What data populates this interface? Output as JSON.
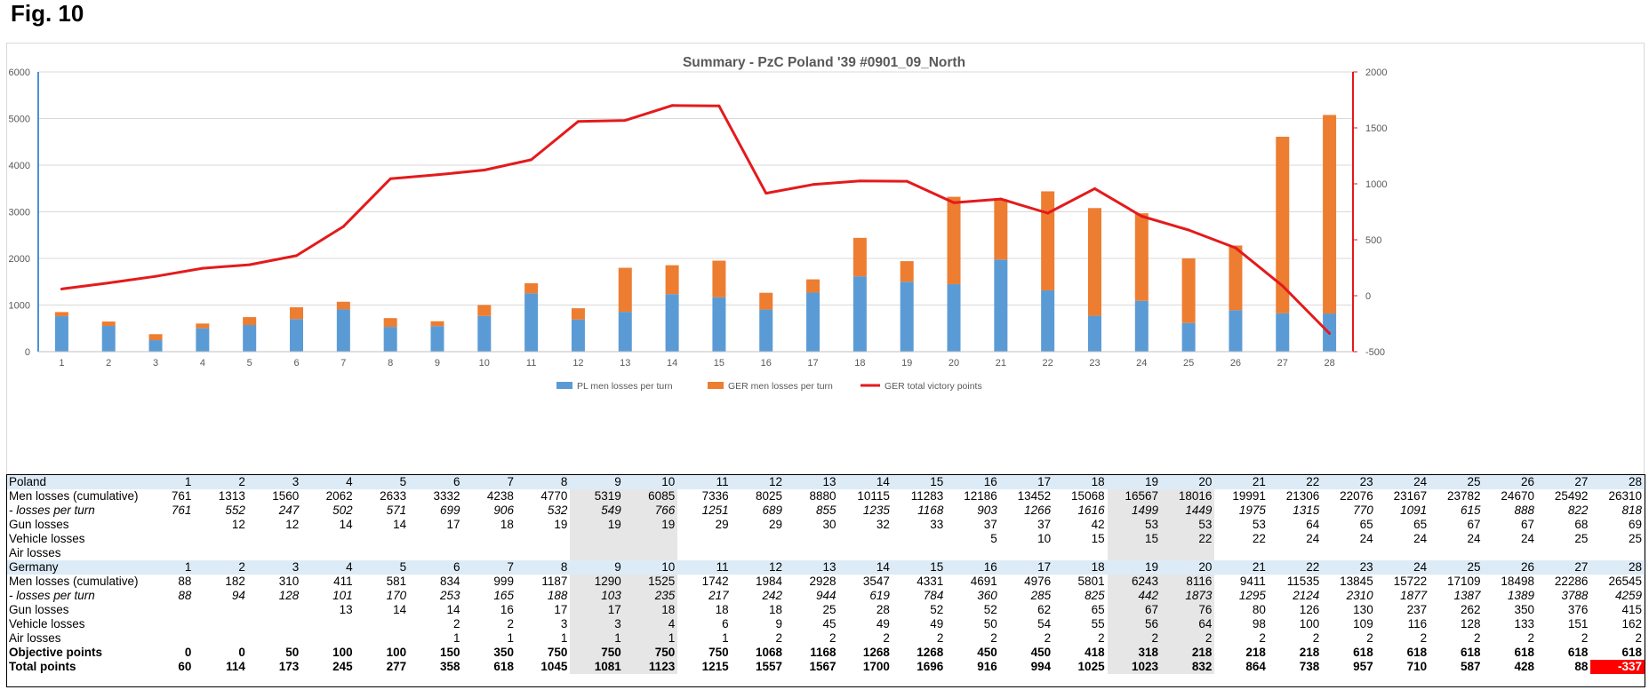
{
  "figure_label": "Fig. 10",
  "chart_data": {
    "type": "bar",
    "title": "Summary - PzC Poland '39 #0901_09_North",
    "stacked": true,
    "categories": [
      "1",
      "2",
      "3",
      "4",
      "5",
      "6",
      "7",
      "8",
      "9",
      "10",
      "11",
      "12",
      "13",
      "14",
      "15",
      "16",
      "17",
      "18",
      "19",
      "20",
      "21",
      "22",
      "23",
      "24",
      "25",
      "26",
      "27",
      "28"
    ],
    "series": [
      {
        "name": "PL men losses per turn",
        "type": "bar",
        "axis": "left",
        "color": "#5b9bd5",
        "values": [
          761,
          552,
          247,
          502,
          571,
          699,
          906,
          532,
          549,
          766,
          1251,
          689,
          855,
          1235,
          1168,
          903,
          1266,
          1616,
          1499,
          1449,
          1975,
          1315,
          770,
          1091,
          615,
          888,
          822,
          818
        ]
      },
      {
        "name": "GER men losses per turn",
        "type": "bar",
        "axis": "left",
        "color": "#ed7d31",
        "values": [
          88,
          94,
          128,
          101,
          170,
          253,
          165,
          188,
          103,
          235,
          217,
          242,
          944,
          619,
          784,
          360,
          285,
          825,
          442,
          1873,
          1295,
          2124,
          2310,
          1877,
          1387,
          1389,
          3788,
          4259
        ]
      },
      {
        "name": "GER total victory points",
        "type": "line",
        "axis": "right",
        "color": "#e41a1c",
        "values": [
          60,
          114,
          173,
          245,
          277,
          358,
          618,
          1045,
          1081,
          1123,
          1215,
          1557,
          1567,
          1700,
          1696,
          916,
          994,
          1025,
          1023,
          832,
          864,
          738,
          957,
          710,
          587,
          428,
          88,
          -337
        ]
      }
    ],
    "ylim_left": [
      0,
      6000
    ],
    "yticks_left": [
      "0",
      "1000",
      "2000",
      "3000",
      "4000",
      "5000",
      "6000"
    ],
    "ylim_right": [
      -500,
      2000
    ],
    "yticks_right": [
      "-500",
      "0",
      "500",
      "1000",
      "1500",
      "2000"
    ],
    "legend_position": "bottom",
    "grid": true
  },
  "table": {
    "header_cols": [
      "1",
      "2",
      "3",
      "4",
      "5",
      "6",
      "7",
      "8",
      "9",
      "10",
      "11",
      "12",
      "13",
      "14",
      "15",
      "16",
      "17",
      "18",
      "19",
      "20",
      "21",
      "22",
      "23",
      "24",
      "25",
      "26",
      "27",
      "28"
    ],
    "shaded_cols": [
      9,
      10,
      19,
      20
    ],
    "rows": [
      {
        "label": "Poland",
        "style": "country",
        "cells": [
          "1",
          "2",
          "3",
          "4",
          "5",
          "6",
          "7",
          "8",
          "9",
          "10",
          "11",
          "12",
          "13",
          "14",
          "15",
          "16",
          "17",
          "18",
          "19",
          "20",
          "21",
          "22",
          "23",
          "24",
          "25",
          "26",
          "27",
          "28"
        ]
      },
      {
        "label": "Men losses (cumulative)",
        "style": "",
        "cells": [
          "761",
          "1313",
          "1560",
          "2062",
          "2633",
          "3332",
          "4238",
          "4770",
          "5319",
          "6085",
          "7336",
          "8025",
          "8880",
          "10115",
          "11283",
          "12186",
          "13452",
          "15068",
          "16567",
          "18016",
          "19991",
          "21306",
          "22076",
          "23167",
          "23782",
          "24670",
          "25492",
          "26310"
        ]
      },
      {
        "label": " - losses per turn",
        "style": "italic",
        "cells": [
          "761",
          "552",
          "247",
          "502",
          "571",
          "699",
          "906",
          "532",
          "549",
          "766",
          "1251",
          "689",
          "855",
          "1235",
          "1168",
          "903",
          "1266",
          "1616",
          "1499",
          "1449",
          "1975",
          "1315",
          "770",
          "1091",
          "615",
          "888",
          "822",
          "818"
        ]
      },
      {
        "label": "Gun losses",
        "style": "",
        "cells": [
          "",
          "12",
          "12",
          "14",
          "14",
          "17",
          "18",
          "19",
          "19",
          "19",
          "29",
          "29",
          "30",
          "32",
          "33",
          "37",
          "37",
          "42",
          "53",
          "53",
          "53",
          "64",
          "65",
          "65",
          "67",
          "67",
          "68",
          "69"
        ]
      },
      {
        "label": "Vehicle losses",
        "style": "",
        "cells": [
          "",
          "",
          "",
          "",
          "",
          "",
          "",
          "",
          "",
          "",
          "",
          "",
          "",
          "",
          "",
          "5",
          "10",
          "15",
          "15",
          "22",
          "22",
          "24",
          "24",
          "24",
          "24",
          "24",
          "25",
          "25"
        ]
      },
      {
        "label": "Air losses",
        "style": "",
        "cells": [
          "",
          "",
          "",
          "",
          "",
          "",
          "",
          "",
          "",
          "",
          "",
          "",
          "",
          "",
          "",
          "",
          "",
          "",
          "",
          "",
          "",
          "",
          "",
          "",
          "",
          "",
          "",
          ""
        ]
      },
      {
        "label": "Germany",
        "style": "country",
        "cells": [
          "1",
          "2",
          "3",
          "4",
          "5",
          "6",
          "7",
          "8",
          "9",
          "10",
          "11",
          "12",
          "13",
          "14",
          "15",
          "16",
          "17",
          "18",
          "19",
          "20",
          "21",
          "22",
          "23",
          "24",
          "25",
          "26",
          "27",
          "28"
        ]
      },
      {
        "label": "Men losses (cumulative)",
        "style": "",
        "cells": [
          "88",
          "182",
          "310",
          "411",
          "581",
          "834",
          "999",
          "1187",
          "1290",
          "1525",
          "1742",
          "1984",
          "2928",
          "3547",
          "4331",
          "4691",
          "4976",
          "5801",
          "6243",
          "8116",
          "9411",
          "11535",
          "13845",
          "15722",
          "17109",
          "18498",
          "22286",
          "26545"
        ]
      },
      {
        "label": " - losses per turn",
        "style": "italic",
        "cells": [
          "88",
          "94",
          "128",
          "101",
          "170",
          "253",
          "165",
          "188",
          "103",
          "235",
          "217",
          "242",
          "944",
          "619",
          "784",
          "360",
          "285",
          "825",
          "442",
          "1873",
          "1295",
          "2124",
          "2310",
          "1877",
          "1387",
          "1389",
          "3788",
          "4259"
        ]
      },
      {
        "label": "Gun losses",
        "style": "",
        "cells": [
          "",
          "",
          "",
          "13",
          "14",
          "14",
          "16",
          "17",
          "17",
          "18",
          "18",
          "18",
          "25",
          "28",
          "52",
          "52",
          "62",
          "65",
          "67",
          "76",
          "80",
          "126",
          "130",
          "237",
          "262",
          "350",
          "376",
          "415"
        ]
      },
      {
        "label": "Vehicle losses",
        "style": "",
        "cells": [
          "",
          "",
          "",
          "",
          "",
          "2",
          "2",
          "3",
          "3",
          "4",
          "6",
          "9",
          "45",
          "49",
          "49",
          "50",
          "54",
          "55",
          "56",
          "64",
          "98",
          "100",
          "109",
          "116",
          "128",
          "133",
          "151",
          "162"
        ]
      },
      {
        "label": "Air losses",
        "style": "",
        "cells": [
          "",
          "",
          "",
          "",
          "",
          "1",
          "1",
          "1",
          "1",
          "1",
          "1",
          "2",
          "2",
          "2",
          "2",
          "2",
          "2",
          "2",
          "2",
          "2",
          "2",
          "2",
          "2",
          "2",
          "2",
          "2",
          "2",
          "2"
        ]
      },
      {
        "label": "Objective points",
        "style": "bold",
        "cells": [
          "0",
          "0",
          "50",
          "100",
          "100",
          "150",
          "350",
          "750",
          "750",
          "750",
          "750",
          "1068",
          "1168",
          "1268",
          "1268",
          "450",
          "450",
          "418",
          "318",
          "218",
          "218",
          "218",
          "618",
          "618",
          "618",
          "618",
          "618",
          "618"
        ]
      },
      {
        "label": "Total points",
        "style": "bold",
        "cells": [
          "60",
          "114",
          "173",
          "245",
          "277",
          "358",
          "618",
          "1045",
          "1081",
          "1123",
          "1215",
          "1557",
          "1567",
          "1700",
          "1696",
          "916",
          "994",
          "1025",
          "1023",
          "832",
          "864",
          "738",
          "957",
          "710",
          "587",
          "428",
          "88",
          "-337"
        ]
      }
    ]
  }
}
